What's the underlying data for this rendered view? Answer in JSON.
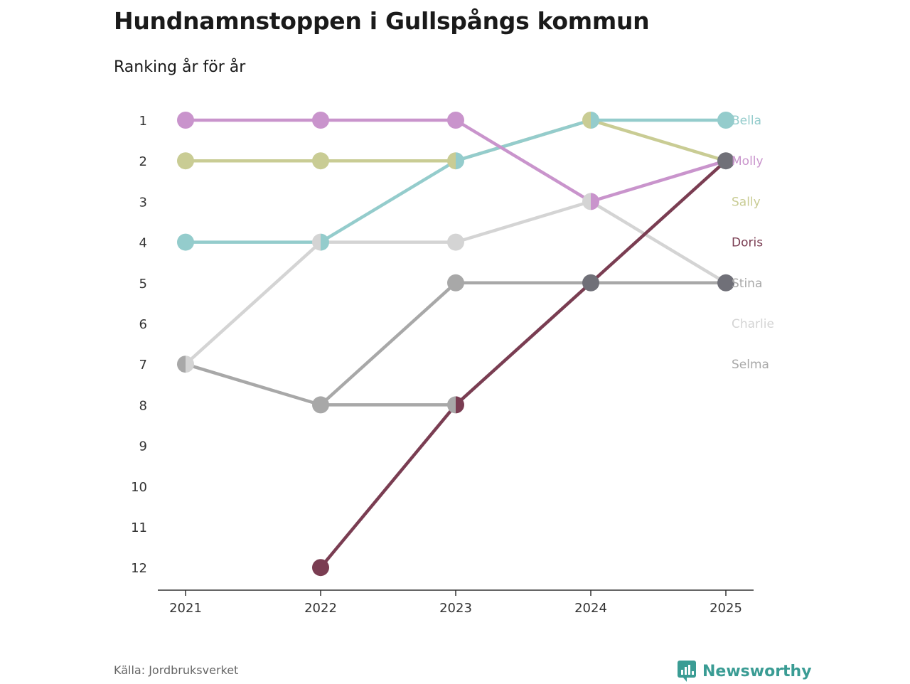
{
  "title": "Hundnamnstoppen i Gullspångs kommun",
  "subtitle": "Ranking år för år",
  "source": "Källa: Jordbruksverket",
  "brand": {
    "name": "Newsworthy",
    "color": "#3a9c94",
    "icon": "newsworthy-chart-logo-icon"
  },
  "chart_data": {
    "type": "line",
    "title": "Hundnamnstoppen i Gullspångs kommun",
    "subtitle": "Ranking år för år",
    "x": [
      "2021",
      "2022",
      "2023",
      "2024",
      "2025"
    ],
    "y_ticks": [
      "1",
      "2",
      "3",
      "4",
      "5",
      "6",
      "7",
      "8",
      "9",
      "10",
      "11",
      "12"
    ],
    "ylim": [
      1,
      12
    ],
    "y_inverted": true,
    "legend_placement": "right",
    "series": [
      {
        "name": "Charlie",
        "color": "#d4d4d4",
        "values": [
          7,
          4,
          4,
          3,
          5
        ]
      },
      {
        "name": "Selma",
        "color": "#a8a8a8",
        "values": [
          7,
          8,
          5,
          5,
          5
        ]
      },
      {
        "name": "Stina",
        "color": "#a8a8a8",
        "values": [
          null,
          8,
          8,
          5,
          5
        ]
      },
      {
        "name": "Sally",
        "color": "#c9cc94",
        "values": [
          2,
          2,
          2,
          1,
          2
        ]
      },
      {
        "name": "Bella",
        "color": "#94cccc",
        "values": [
          4,
          4,
          2,
          1,
          1
        ]
      },
      {
        "name": "Molly",
        "color": "#c994cc",
        "values": [
          1,
          1,
          1,
          3,
          2
        ]
      },
      {
        "name": "Doris",
        "color": "#7a3d52",
        "values": [
          null,
          12,
          8,
          5,
          2
        ]
      }
    ],
    "labels": [
      {
        "name": "Bella",
        "rank": 1,
        "color": "#94cccc"
      },
      {
        "name": "Molly",
        "rank": 2,
        "color": "#c994cc"
      },
      {
        "name": "Sally",
        "rank": 3,
        "color": "#c9cc94"
      },
      {
        "name": "Doris",
        "rank": 4,
        "color": "#7a3d52"
      },
      {
        "name": "Stina",
        "rank": 5,
        "color": "#a8a8a8"
      },
      {
        "name": "Charlie",
        "rank": 6,
        "color": "#d4d4d4"
      },
      {
        "name": "Selma",
        "rank": 7,
        "color": "#a8a8a8"
      }
    ],
    "multi_dot_color": "#707078"
  }
}
